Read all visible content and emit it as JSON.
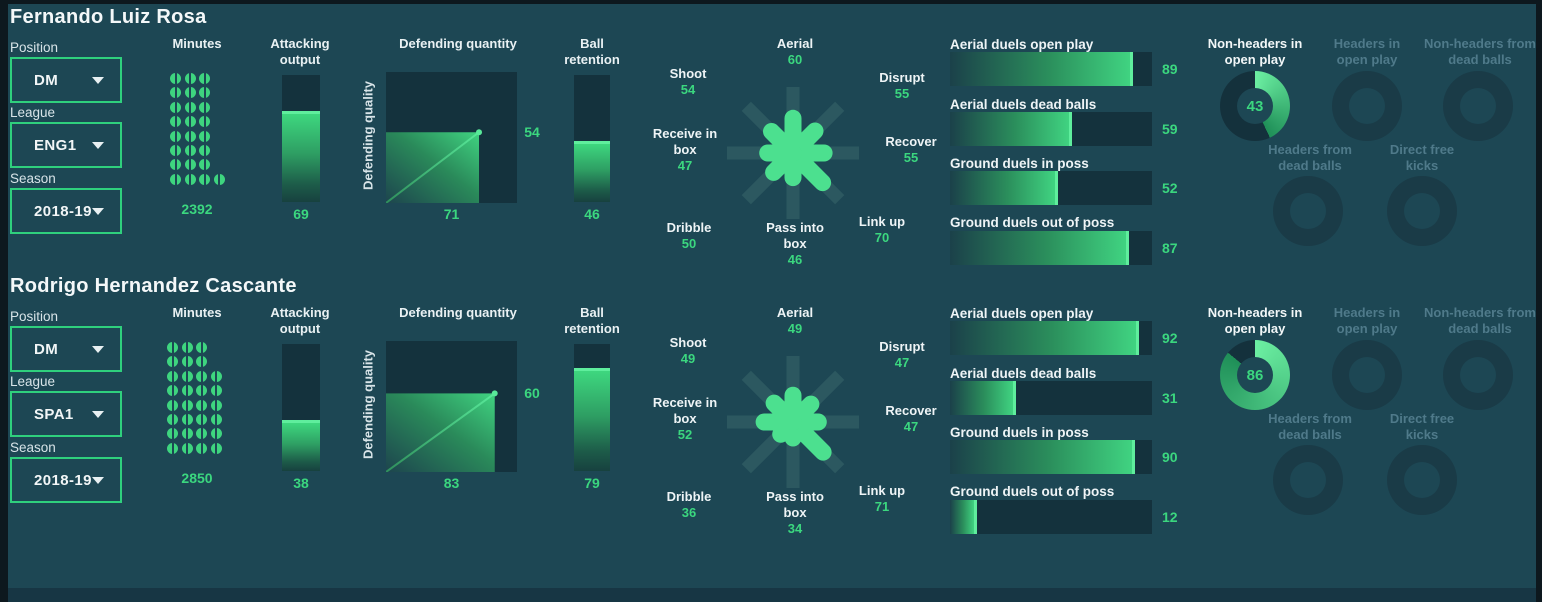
{
  "colors": {
    "background": "#1d4754",
    "frame": "#0d181e",
    "panel_dark": "#14323d",
    "accent_green": "#4ce08f",
    "value_green": "#3bd77f",
    "select_border": "#2fd07d",
    "dim_text": "#4f7a8a",
    "white": "#f2f6f7"
  },
  "players": [
    {
      "name": "Fernando Luiz Rosa",
      "filters": {
        "position_label": "Position",
        "position": "DM",
        "league_label": "League",
        "league": "ENG1",
        "season_label": "Season",
        "season": "2018-19"
      },
      "minutes": {
        "title": "Minutes",
        "value": 2392,
        "dot_rows": [
          3,
          3,
          3,
          3,
          3,
          3,
          3,
          4
        ]
      },
      "attacking_output": {
        "title": "Attacking output",
        "value": 69
      },
      "defending": {
        "title": "Defending quantity",
        "ylabel": "Defending quality",
        "quantity": 71,
        "quality": 54
      },
      "ball_retention": {
        "title": "Ball retention",
        "value": 46
      },
      "star": [
        {
          "label": "Aerial",
          "value": 60
        },
        {
          "label": "Disrupt",
          "value": 55
        },
        {
          "label": "Recover",
          "value": 55
        },
        {
          "label": "Link up",
          "value": 70
        },
        {
          "label": "Pass into box",
          "value": 46
        },
        {
          "label": "Dribble",
          "value": 50
        },
        {
          "label": "Receive in box",
          "value": 47
        },
        {
          "label": "Shoot",
          "value": 54
        }
      ],
      "duel_bars": [
        {
          "label": "Aerial duels open play",
          "value": 89
        },
        {
          "label": "Aerial duels dead balls",
          "value": 59
        },
        {
          "label": "Ground duels in poss",
          "value": 52
        },
        {
          "label": "Ground duels out of poss",
          "value": 87
        }
      ],
      "shot_donuts": [
        {
          "label": "Non-headers in open play",
          "value": 43,
          "active": true
        },
        {
          "label": "Headers in open play",
          "active": false
        },
        {
          "label": "Non-headers from dead balls",
          "active": false
        },
        {
          "label": "Headers from dead balls",
          "active": false
        },
        {
          "label": "Direct free kicks",
          "active": false
        }
      ]
    },
    {
      "name": "Rodrigo Hernandez Cascante",
      "filters": {
        "position_label": "Position",
        "position": "DM",
        "league_label": "League",
        "league": "SPA1",
        "season_label": "Season",
        "season": "2018-19"
      },
      "minutes": {
        "title": "Minutes",
        "value": 2850,
        "dot_rows": [
          3,
          3,
          4,
          4,
          4,
          4,
          4,
          4
        ]
      },
      "attacking_output": {
        "title": "Attacking output",
        "value": 38
      },
      "defending": {
        "title": "Defending quantity",
        "ylabel": "Defending quality",
        "quantity": 83,
        "quality": 60
      },
      "ball_retention": {
        "title": "Ball retention",
        "value": 79
      },
      "star": [
        {
          "label": "Aerial",
          "value": 49
        },
        {
          "label": "Disrupt",
          "value": 47
        },
        {
          "label": "Recover",
          "value": 47
        },
        {
          "label": "Link up",
          "value": 71
        },
        {
          "label": "Pass into box",
          "value": 34
        },
        {
          "label": "Dribble",
          "value": 36
        },
        {
          "label": "Receive in box",
          "value": 52
        },
        {
          "label": "Shoot",
          "value": 49
        }
      ],
      "duel_bars": [
        {
          "label": "Aerial duels open play",
          "value": 92
        },
        {
          "label": "Aerial duels dead balls",
          "value": 31
        },
        {
          "label": "Ground duels in poss",
          "value": 90
        },
        {
          "label": "Ground duels out of poss",
          "value": 12
        }
      ],
      "shot_donuts": [
        {
          "label": "Non-headers in open play",
          "value": 86,
          "active": true
        },
        {
          "label": "Headers in open play",
          "active": false
        },
        {
          "label": "Non-headers from dead balls",
          "active": false
        },
        {
          "label": "Headers from dead balls",
          "active": false
        },
        {
          "label": "Direct free kicks",
          "active": false
        }
      ]
    }
  ],
  "chart_data": [
    {
      "type": "bar",
      "title": "Minutes",
      "categories": [
        "Fernando Luiz Rosa",
        "Rodrigo Hernandez Cascante"
      ],
      "values": [
        2392,
        2850
      ]
    },
    {
      "type": "bar",
      "title": "Attacking output",
      "categories": [
        "Fernando Luiz Rosa",
        "Rodrigo Hernandez Cascante"
      ],
      "values": [
        69,
        38
      ],
      "ylim": [
        0,
        100
      ]
    },
    {
      "type": "scatter",
      "title": "Defending quantity",
      "xlabel": "Defending quantity",
      "ylabel": "Defending quality",
      "points": [
        {
          "name": "Fernando Luiz Rosa",
          "x": 71,
          "y": 54
        },
        {
          "name": "Rodrigo Hernandez Cascante",
          "x": 83,
          "y": 60
        }
      ],
      "xlim": [
        0,
        100
      ],
      "ylim": [
        0,
        100
      ]
    },
    {
      "type": "bar",
      "title": "Ball retention",
      "categories": [
        "Fernando Luiz Rosa",
        "Rodrigo Hernandez Cascante"
      ],
      "values": [
        46,
        79
      ],
      "ylim": [
        0,
        100
      ]
    },
    {
      "type": "radar",
      "title": "Role star",
      "categories": [
        "Aerial",
        "Disrupt",
        "Recover",
        "Link up",
        "Pass into box",
        "Dribble",
        "Receive in box",
        "Shoot"
      ],
      "series": [
        {
          "name": "Fernando Luiz Rosa",
          "values": [
            60,
            55,
            55,
            70,
            46,
            50,
            47,
            54
          ]
        },
        {
          "name": "Rodrigo Hernandez Cascante",
          "values": [
            49,
            47,
            47,
            71,
            34,
            36,
            52,
            49
          ]
        }
      ],
      "range": [
        0,
        100
      ]
    },
    {
      "type": "bar",
      "orientation": "horizontal",
      "title": "Duels",
      "categories": [
        "Aerial duels open play",
        "Aerial duels dead balls",
        "Ground duels in poss",
        "Ground duels out of poss"
      ],
      "series": [
        {
          "name": "Fernando Luiz Rosa",
          "values": [
            89,
            59,
            52,
            87
          ]
        },
        {
          "name": "Rodrigo Hernandez Cascante",
          "values": [
            92,
            31,
            90,
            12
          ]
        }
      ],
      "range": [
        0,
        100
      ]
    },
    {
      "type": "pie",
      "title": "Shot types",
      "categories": [
        "Non-headers in open play",
        "Headers in open play",
        "Non-headers from dead balls",
        "Headers from dead balls",
        "Direct free kicks"
      ],
      "series": [
        {
          "name": "Fernando Luiz Rosa",
          "values": [
            43,
            null,
            null,
            null,
            null
          ]
        },
        {
          "name": "Rodrigo Hernandez Cascante",
          "values": [
            86,
            null,
            null,
            null,
            null
          ]
        }
      ],
      "note": "Donut gauges out of 100; only Non-headers in open play is active, others dimmed/empty"
    }
  ]
}
